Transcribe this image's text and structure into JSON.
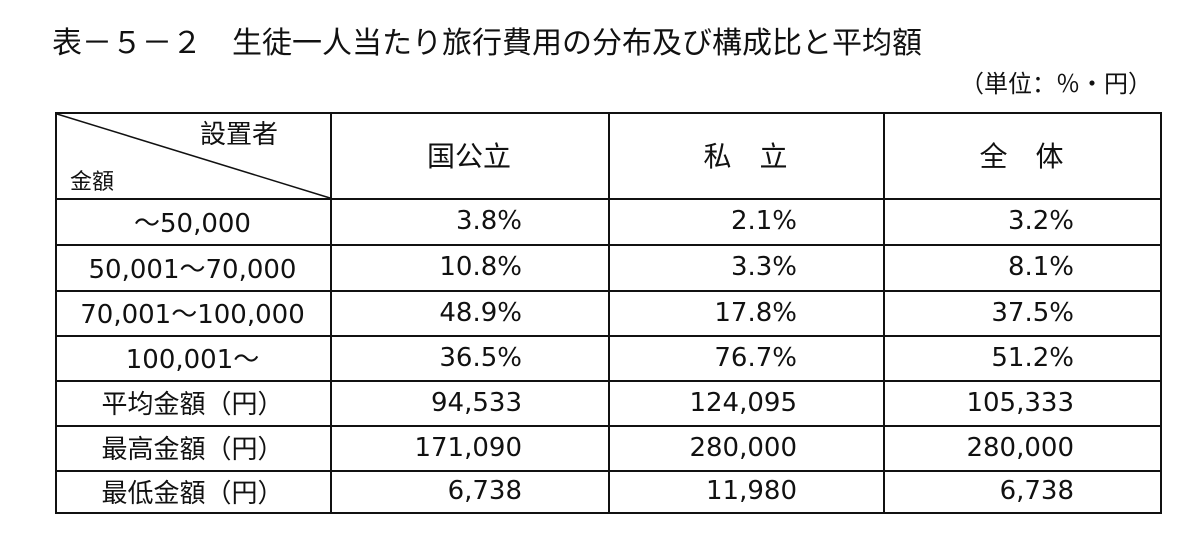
{
  "title": "表－５－２　生徒一人当たり旅行費用の分布及び構成比と平均額",
  "unit": "（単位：％・円）",
  "table": {
    "corner_top": "設置者",
    "corner_bottom": "金額",
    "columns": [
      "国公立",
      "私　立",
      "全　体"
    ],
    "rows": [
      [
        "～50,000",
        "3.8%",
        "2.1%",
        "3.2%"
      ],
      [
        "50,001～70,000",
        "10.8%",
        "3.3%",
        "8.1%"
      ],
      [
        "70,001～100,000",
        "48.9%",
        "17.8%",
        "37.5%"
      ],
      [
        "100,001～",
        "36.5%",
        "76.7%",
        "51.2%"
      ],
      [
        "平均金額（円）",
        "94,533",
        "124,095",
        "105,333"
      ],
      [
        "最高金額（円）",
        "171,090",
        "280,000",
        "280,000"
      ],
      [
        "最低金額（円）",
        "6,738",
        "11,980",
        "6,738"
      ]
    ]
  }
}
